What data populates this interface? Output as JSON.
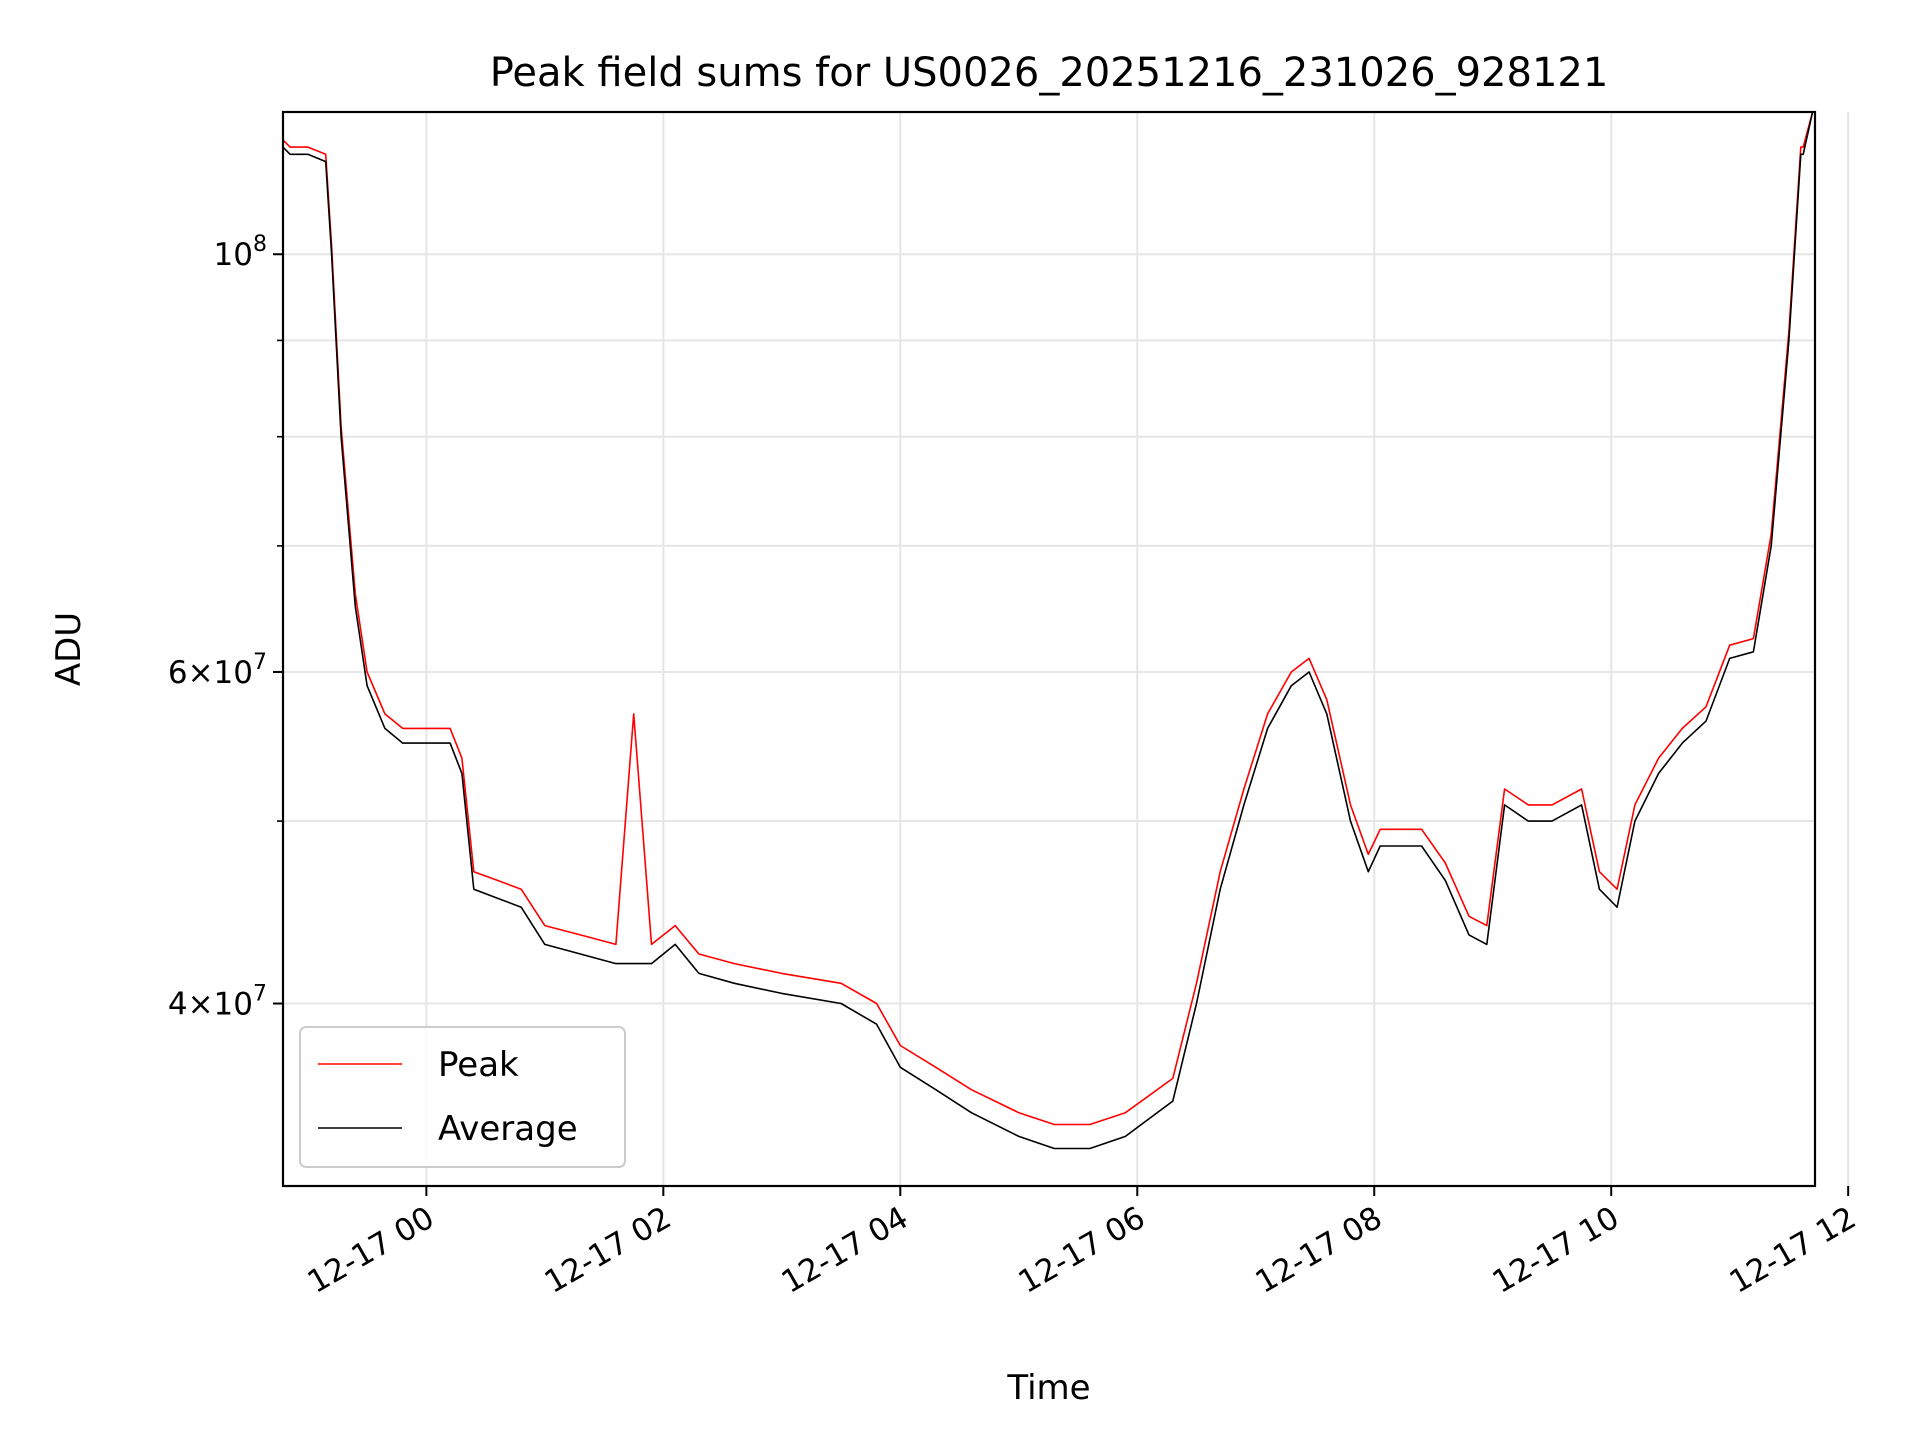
{
  "chart_data": {
    "type": "line",
    "title": "Peak field sums for US0026_20251216_231026_928121",
    "xlabel": "Time",
    "ylabel": "ADU",
    "yscale": "log",
    "xlim_hours": [
      -1.21,
      11.72
    ],
    "ylim": [
      32000000,
      119000000
    ],
    "grid": true,
    "x_ticks": [
      {
        "hours": 0,
        "label": "12-17 00"
      },
      {
        "hours": 2,
        "label": "12-17 02"
      },
      {
        "hours": 4,
        "label": "12-17 04"
      },
      {
        "hours": 6,
        "label": "12-17 06"
      },
      {
        "hours": 8,
        "label": "12-17 08"
      },
      {
        "hours": 10,
        "label": "12-17 10"
      },
      {
        "hours": 12,
        "label": "12-17 12"
      }
    ],
    "y_major_ticks": [
      {
        "value": 40000000,
        "mant": "4",
        "exp": "7",
        "times": true
      },
      {
        "value": 60000000,
        "mant": "6",
        "exp": "7",
        "times": true
      },
      {
        "value": 100000000,
        "mant": "10",
        "exp": "8",
        "times": false
      }
    ],
    "y_minor_ticks": [
      50000000,
      70000000,
      80000000,
      90000000
    ],
    "legend": {
      "position": "lower-left",
      "peak_label": "Peak",
      "average_label": "Average"
    },
    "colors": {
      "peak": "#ff0000",
      "average": "#000000",
      "grid": "#e6e6e6"
    },
    "series": [
      {
        "name": "Average",
        "x_hours": [
          -1.21,
          -1.15,
          -1.0,
          -0.85,
          -0.8,
          -0.72,
          -0.6,
          -0.5,
          -0.35,
          -0.2,
          -0.05,
          0.1,
          0.2,
          0.3,
          0.4,
          0.6,
          0.8,
          1.0,
          1.3,
          1.6,
          1.9,
          2.1,
          2.3,
          2.6,
          3.0,
          3.5,
          3.8,
          4.0,
          4.3,
          4.6,
          5.0,
          5.3,
          5.6,
          5.9,
          6.3,
          6.5,
          6.7,
          6.9,
          7.1,
          7.3,
          7.45,
          7.6,
          7.8,
          7.95,
          8.05,
          8.2,
          8.4,
          8.6,
          8.8,
          8.95,
          9.1,
          9.3,
          9.5,
          9.75,
          9.9,
          10.05,
          10.2,
          10.4,
          10.6,
          10.8,
          11.0,
          11.2,
          11.35,
          11.5,
          11.6,
          11.62,
          11.7
        ],
        "values": [
          114000000,
          113000000,
          113000000,
          112000000,
          100000000,
          80000000,
          65000000,
          59000000,
          56000000,
          55000000,
          55000000,
          55000000,
          55000000,
          53000000,
          46000000,
          45500000,
          45000000,
          43000000,
          42500000,
          42000000,
          42000000,
          43000000,
          41500000,
          41000000,
          40500000,
          40000000,
          39000000,
          37000000,
          36000000,
          35000000,
          34000000,
          33500000,
          33500000,
          34000000,
          35500000,
          40000000,
          46000000,
          51000000,
          56000000,
          59000000,
          60000000,
          57000000,
          50000000,
          47000000,
          48500000,
          48500000,
          48500000,
          46500000,
          43500000,
          43000000,
          51000000,
          50000000,
          50000000,
          51000000,
          46000000,
          45000000,
          50000000,
          53000000,
          55000000,
          56500000,
          61000000,
          61500000,
          70000000,
          90000000,
          113000000,
          113000000,
          119000000
        ]
      },
      {
        "name": "Peak",
        "x_hours": [
          -1.21,
          -1.15,
          -1.0,
          -0.85,
          -0.8,
          -0.72,
          -0.6,
          -0.5,
          -0.35,
          -0.2,
          -0.05,
          0.1,
          0.2,
          0.3,
          0.4,
          0.6,
          0.8,
          1.0,
          1.3,
          1.6,
          1.75,
          1.9,
          2.1,
          2.3,
          2.6,
          3.0,
          3.5,
          3.8,
          4.0,
          4.3,
          4.6,
          5.0,
          5.3,
          5.6,
          5.9,
          6.3,
          6.5,
          6.7,
          6.9,
          7.1,
          7.3,
          7.45,
          7.6,
          7.8,
          7.95,
          8.05,
          8.2,
          8.4,
          8.6,
          8.8,
          8.95,
          9.1,
          9.3,
          9.5,
          9.75,
          9.9,
          10.05,
          10.2,
          10.4,
          10.6,
          10.8,
          11.0,
          11.2,
          11.35,
          11.5,
          11.6,
          11.62,
          11.7
        ],
        "values": [
          115000000,
          114000000,
          114000000,
          113000000,
          101000000,
          81000000,
          66000000,
          60000000,
          57000000,
          56000000,
          56000000,
          56000000,
          56000000,
          54000000,
          47000000,
          46500000,
          46000000,
          44000000,
          43500000,
          43000000,
          57000000,
          43000000,
          44000000,
          42500000,
          42000000,
          41500000,
          41000000,
          40000000,
          38000000,
          37000000,
          36000000,
          35000000,
          34500000,
          34500000,
          35000000,
          36500000,
          41000000,
          47000000,
          52000000,
          57000000,
          60000000,
          61000000,
          58000000,
          51000000,
          48000000,
          49500000,
          49500000,
          49500000,
          47500000,
          44500000,
          44000000,
          52000000,
          51000000,
          51000000,
          52000000,
          47000000,
          46000000,
          51000000,
          54000000,
          56000000,
          57500000,
          62000000,
          62500000,
          71000000,
          91000000,
          114000000,
          114000000,
          119000000
        ]
      }
    ]
  }
}
